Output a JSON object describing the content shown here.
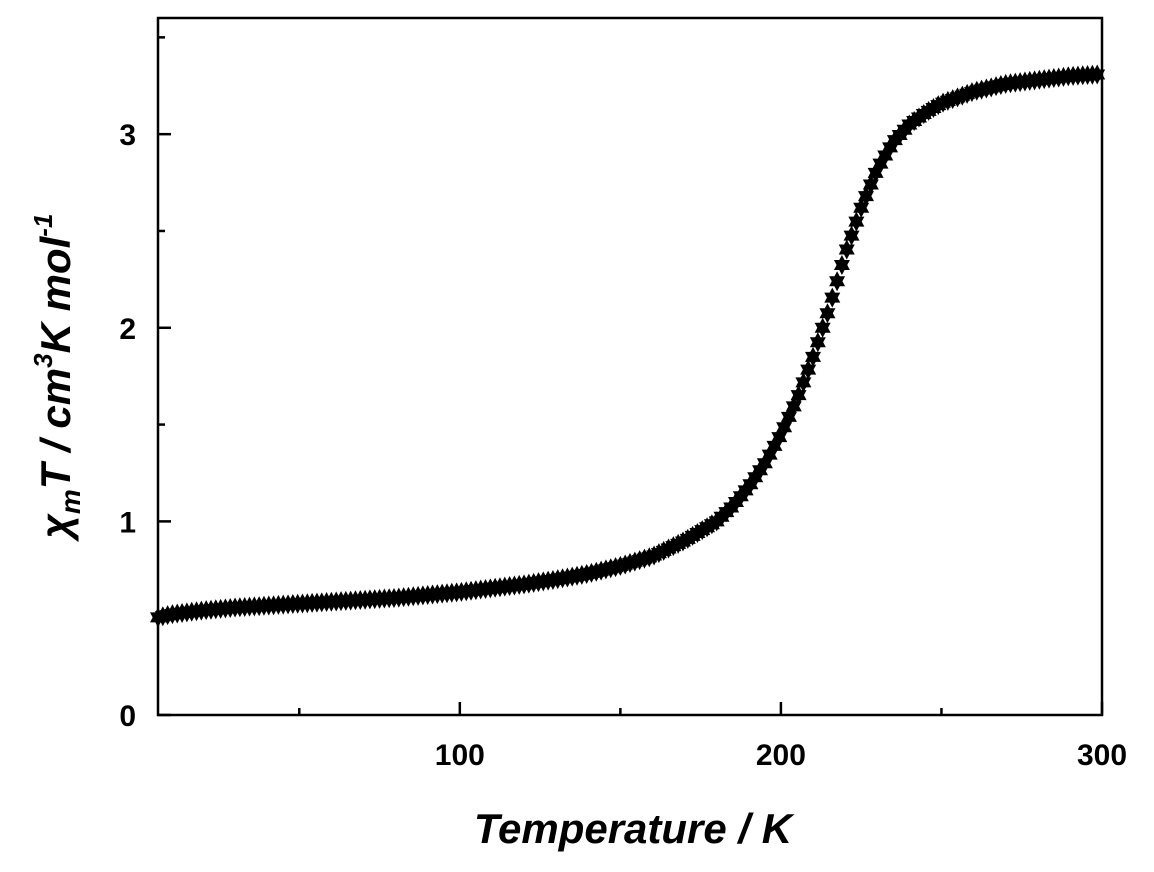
{
  "chart_data": {
    "type": "scatter",
    "xlabel": "Temperature / K",
    "ylabel": {
      "chi": "χ",
      "m_sub": "m",
      "T": "T / cm",
      "exp3": "3",
      "unit": "K mol",
      "exp_neg1": "-1"
    },
    "xlim": [
      6,
      300
    ],
    "ylim": [
      0,
      3.6
    ],
    "x_major_ticks": [
      100,
      200,
      300
    ],
    "x_tick_labels": [
      "100",
      "200",
      "300"
    ],
    "x_minor_ticks": [
      50,
      150,
      250
    ],
    "y_major_ticks": [
      0,
      1,
      2,
      3
    ],
    "y_tick_labels": [
      "0",
      "1",
      "2",
      "3"
    ],
    "y_minor_ticks": [
      0.5,
      1.5,
      2.5,
      3.5
    ],
    "marker": "star",
    "marker_color": "#000000",
    "grid": false,
    "legend": "none",
    "series": [
      {
        "values": [
          [
            5,
            0.5
          ],
          [
            10,
            0.52
          ],
          [
            20,
            0.54
          ],
          [
            30,
            0.555
          ],
          [
            40,
            0.565
          ],
          [
            50,
            0.575
          ],
          [
            60,
            0.585
          ],
          [
            70,
            0.595
          ],
          [
            80,
            0.605
          ],
          [
            90,
            0.62
          ],
          [
            100,
            0.635
          ],
          [
            110,
            0.655
          ],
          [
            120,
            0.675
          ],
          [
            130,
            0.7
          ],
          [
            140,
            0.73
          ],
          [
            150,
            0.77
          ],
          [
            160,
            0.82
          ],
          [
            170,
            0.9
          ],
          [
            180,
            1.0
          ],
          [
            185,
            1.08
          ],
          [
            190,
            1.18
          ],
          [
            195,
            1.3
          ],
          [
            200,
            1.45
          ],
          [
            205,
            1.63
          ],
          [
            210,
            1.85
          ],
          [
            215,
            2.1
          ],
          [
            220,
            2.38
          ],
          [
            225,
            2.62
          ],
          [
            230,
            2.82
          ],
          [
            235,
            2.96
          ],
          [
            240,
            3.05
          ],
          [
            245,
            3.11
          ],
          [
            250,
            3.16
          ],
          [
            260,
            3.22
          ],
          [
            270,
            3.26
          ],
          [
            280,
            3.28
          ],
          [
            290,
            3.3
          ],
          [
            300,
            3.31
          ]
        ]
      }
    ]
  }
}
